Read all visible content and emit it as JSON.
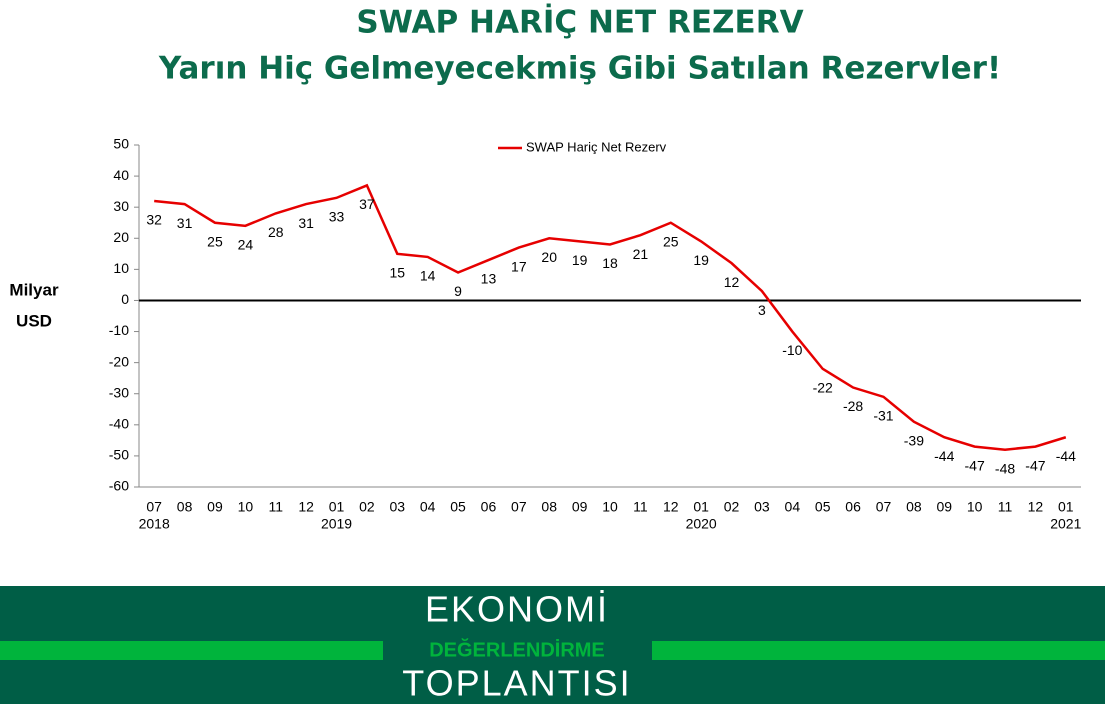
{
  "chart_data": {
    "type": "line",
    "title": "SWAP HARİÇ NET REZERV",
    "subtitle": "Yarın Hiç Gelmeyecekmiş Gibi Satılan Rezervler!",
    "ylabel": [
      "Milyar",
      "USD"
    ],
    "categories": [
      "07",
      "08",
      "09",
      "10",
      "11",
      "12",
      "01",
      "02",
      "03",
      "04",
      "05",
      "06",
      "07",
      "08",
      "09",
      "10",
      "11",
      "12",
      "01",
      "02",
      "03",
      "04",
      "05",
      "06",
      "07",
      "08",
      "09",
      "10",
      "11",
      "12",
      "01"
    ],
    "year_labels": [
      "2018",
      null,
      null,
      null,
      null,
      null,
      "2019",
      null,
      null,
      null,
      null,
      null,
      null,
      null,
      null,
      null,
      null,
      null,
      "2020",
      null,
      null,
      null,
      null,
      null,
      null,
      null,
      null,
      null,
      null,
      null,
      "2021"
    ],
    "series": [
      {
        "name": "SWAP Hariç Net Rezerv",
        "color": "#e60000",
        "values": [
          32,
          31,
          25,
          24,
          28,
          31,
          33,
          37,
          15,
          14,
          9,
          13,
          17,
          20,
          19,
          18,
          21,
          25,
          19,
          12,
          3,
          -10,
          -22,
          -28,
          -31,
          -39,
          -44,
          -47,
          -48,
          -47,
          -44
        ]
      }
    ],
    "ylim": [
      -60,
      50
    ],
    "yticks": [
      -60,
      -50,
      -40,
      -30,
      -20,
      -10,
      0,
      10,
      20,
      30,
      40,
      50
    ],
    "grid": false,
    "legend": "top"
  },
  "footer": {
    "line1": "EKONOMİ",
    "line2": "DEĞERLENDİRME",
    "line3": "TOPLANTISI"
  }
}
